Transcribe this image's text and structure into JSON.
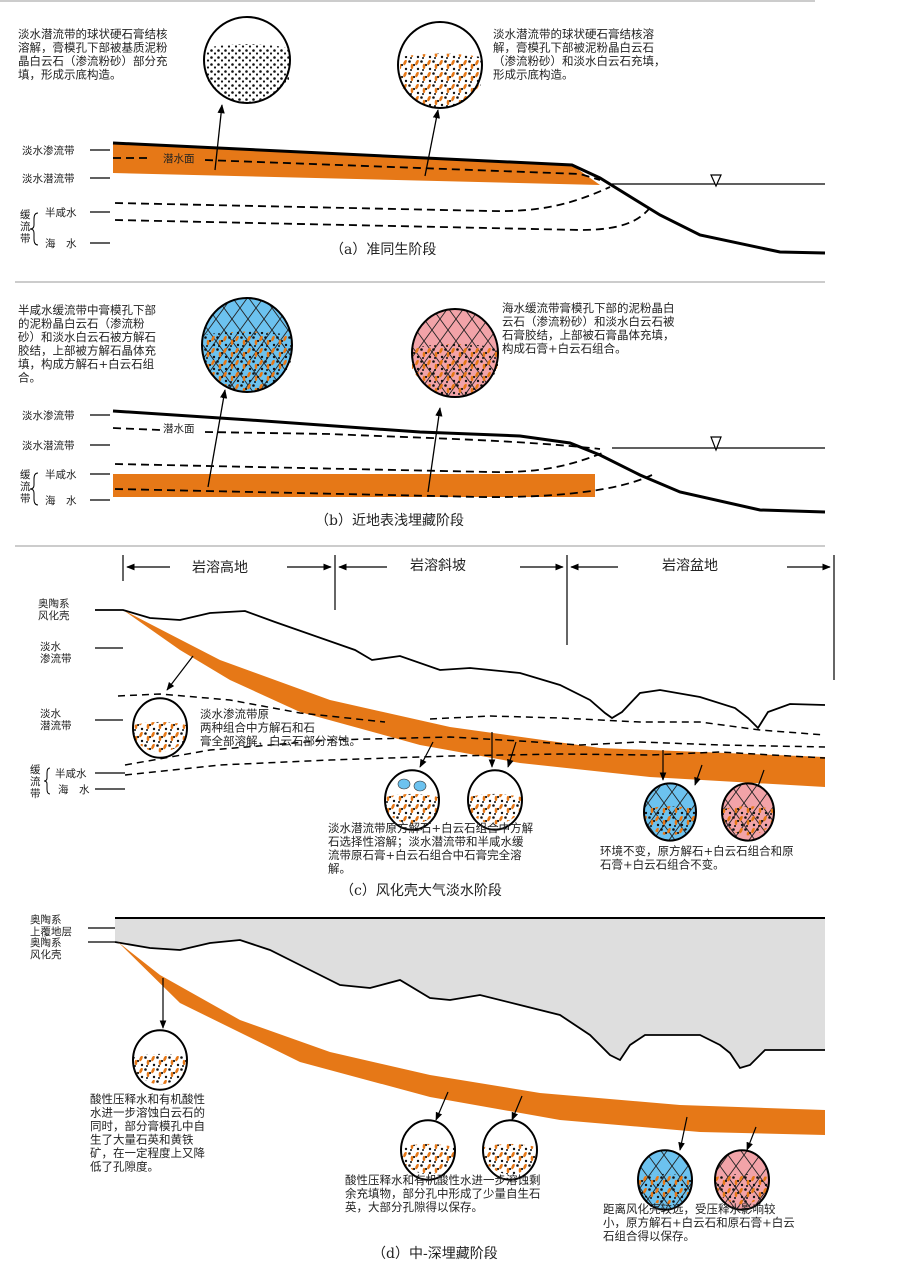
{
  "colors": {
    "orange": "#e67817",
    "blue": "#6cc2ef",
    "pink": "#f2a3a8",
    "gray": "#dedede"
  },
  "panel_a": {
    "caption": "（a）准同生阶段",
    "note_left": [
      "淡水潜流带的球状硬石膏结核",
      "溶解，膏模孔下部被基质泥粉",
      "晶白云石（渗流粉砂）部分充",
      "填，形成示底构造。"
    ],
    "note_right": [
      "淡水潜流带的球状硬石膏结核溶",
      "解，膏模孔下部被泥粉晶白云石",
      "（渗流粉砂）和淡水白云石充填，",
      "形成示底构造。"
    ],
    "water_table": "潜水面",
    "zones": {
      "vadose": "淡水渗流带",
      "phreatic": "淡水潜流带",
      "brackish": "半咸水",
      "sea": "海　水",
      "slow": "缓流带"
    }
  },
  "panel_b": {
    "caption": "（b）近地表浅埋藏阶段",
    "note_left": [
      "半咸水缓流带中膏模孔下部",
      "的泥粉晶白云石（渗流粉",
      "砂）和淡水白云石被方解石",
      "胶结，上部被方解石晶体充",
      "填，构成方解石+白云石组",
      "合。"
    ],
    "note_right": [
      "海水缓流带膏模孔下部的泥粉晶白",
      "云石（渗流粉砂）和淡水白云石被",
      "石膏胶结，上部被石膏晶体充填，",
      "构成石膏+白云石组合。"
    ],
    "water_table": "潜水面",
    "zones": {
      "vadose": "淡水渗流带",
      "phreatic": "淡水潜流带",
      "brackish": "半咸水",
      "sea": "海　水",
      "slow": "缓流带"
    }
  },
  "panel_c": {
    "caption": "（c）风化壳大气淡水阶段",
    "regions": [
      "岩溶高地",
      "岩溶斜坡",
      "岩溶盆地"
    ],
    "zones": {
      "crust": [
        "奥陶系",
        "风化壳"
      ],
      "vadose": [
        "淡水",
        "渗流带"
      ],
      "phreatic": [
        "淡水",
        "潜流带"
      ],
      "brackish": "半咸水",
      "sea": "海　水",
      "slow": "缓流带"
    },
    "note_1": [
      "淡水渗流带原",
      "两种组合中方解石和石",
      "膏全部溶解，白云石部分溶蚀。"
    ],
    "note_2": [
      "淡水潜流带原方解石+白云石组合中方解",
      "石选择性溶解；淡水潜流带和半咸水缓",
      "流带原石膏+白云石组合中石膏完全溶",
      "解。"
    ],
    "note_3": [
      "环境不变，原方解石+白云石组合和原",
      "石膏+白云石组合不变。"
    ]
  },
  "panel_d": {
    "caption": "（d）中-深埋藏阶段",
    "zones": {
      "overlying": [
        "奥陶系",
        "上覆地层"
      ],
      "crust": [
        "奥陶系",
        "风化壳"
      ]
    },
    "note_1": [
      "酸性压释水和有机酸性",
      "水进一步溶蚀白云石的",
      "同时，部分膏模孔中自",
      "生了大量石英和黄铁",
      "矿，在一定程度上又降",
      "低了孔隙度。"
    ],
    "note_2": [
      "酸性压释水和有机酸性水进一步溶蚀剩",
      "余充填物，部分孔中形成了少量自生石",
      "英，大部分孔隙得以保存。"
    ],
    "note_3": [
      "距离风化壳较远，受压释水影响较",
      "小，原方解石+白云石和原石膏+白云",
      "石组合得以保存。"
    ]
  }
}
